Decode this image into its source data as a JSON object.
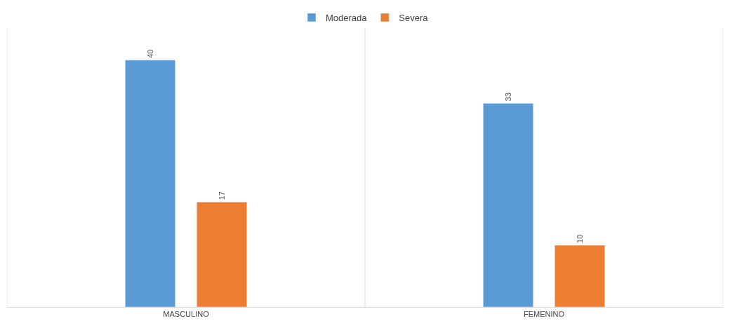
{
  "chart_data": {
    "type": "bar",
    "categories": [
      "MASCULINO",
      "FEMENINO"
    ],
    "series": [
      {
        "name": "Moderada",
        "color": "#5b9bd5",
        "values": [
          40,
          33
        ]
      },
      {
        "name": "Severa",
        "color": "#ed7d31",
        "values": [
          17,
          10
        ]
      }
    ],
    "data_labels": true,
    "legend": "top"
  }
}
